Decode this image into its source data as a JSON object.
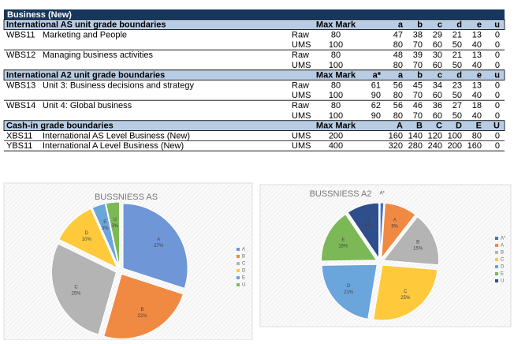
{
  "table": {
    "title": "Business (New)",
    "sections": [
      {
        "heading": "International AS unit grade boundaries",
        "max_header": "Max Mark",
        "grade_headers": [
          "a",
          "b",
          "c",
          "d",
          "e",
          "u"
        ],
        "units": [
          {
            "code": "WBS11",
            "title": "Marketing and People",
            "rows": [
              {
                "scale": "Raw",
                "max": 80,
                "grades": [
                  47,
                  38,
                  29,
                  21,
                  13,
                  0
                ]
              },
              {
                "scale": "UMS",
                "max": 100,
                "grades": [
                  80,
                  70,
                  60,
                  50,
                  40,
                  0
                ]
              }
            ]
          },
          {
            "code": "WBS12",
            "title": "Managing business activities",
            "rows": [
              {
                "scale": "Raw",
                "max": 80,
                "grades": [
                  48,
                  39,
                  30,
                  21,
                  13,
                  0
                ]
              },
              {
                "scale": "UMS",
                "max": 100,
                "grades": [
                  80,
                  70,
                  60,
                  50,
                  40,
                  0
                ]
              }
            ]
          }
        ]
      },
      {
        "heading": "International A2 unit grade boundaries",
        "max_header": "Max Mark",
        "grade_headers": [
          "a*",
          "a",
          "b",
          "c",
          "d",
          "e",
          "u"
        ],
        "units": [
          {
            "code": "WBS13",
            "title": "Unit 3: Business decisions and strategy",
            "rows": [
              {
                "scale": "Raw",
                "max": 80,
                "grades": [
                  61,
                  56,
                  45,
                  34,
                  23,
                  13,
                  0
                ]
              },
              {
                "scale": "UMS",
                "max": 100,
                "grades": [
                  90,
                  80,
                  70,
                  60,
                  50,
                  40,
                  0
                ]
              }
            ]
          },
          {
            "code": "WBS14",
            "title": "Unit 4: Global business",
            "rows": [
              {
                "scale": "Raw",
                "max": 80,
                "grades": [
                  62,
                  56,
                  46,
                  36,
                  27,
                  18,
                  0
                ]
              },
              {
                "scale": "UMS",
                "max": 100,
                "grades": [
                  90,
                  80,
                  70,
                  60,
                  50,
                  40,
                  0
                ]
              }
            ]
          }
        ]
      },
      {
        "heading": "Cash-in grade boundaries",
        "max_header": "Max Mark",
        "grade_headers": [
          "A",
          "B",
          "C",
          "D",
          "E",
          "U"
        ],
        "units": [
          {
            "code": "XBS11",
            "title": "International AS Level Business (New)",
            "rows": [
              {
                "scale": "UMS",
                "max": 200,
                "grades": [
                  160,
                  140,
                  120,
                  100,
                  80,
                  0
                ]
              }
            ]
          },
          {
            "code": "YBS11",
            "title": "International A Level Business (New)",
            "rows": [
              {
                "scale": "UMS",
                "max": 400,
                "grades": [
                  320,
                  280,
                  240,
                  200,
                  160,
                  0
                ]
              }
            ]
          }
        ]
      }
    ]
  },
  "chart_data": [
    {
      "type": "pie",
      "title": "BUSSNIESS AS",
      "categories": [
        "A",
        "B",
        "C",
        "D",
        "E",
        "U"
      ],
      "values": [
        27,
        22,
        25,
        10,
        3,
        3
      ],
      "value_labels": [
        "27%",
        "22%",
        "25%",
        "10%",
        "3%",
        "3%"
      ],
      "colors": [
        "#6f96d6",
        "#f08a43",
        "#b4b4b4",
        "#ffc93c",
        "#6aa5dc",
        "#7db857"
      ],
      "legend": "right"
    },
    {
      "type": "pie",
      "title": "BUSSNIESS A2",
      "categories": [
        "A*",
        "A",
        "B",
        "C",
        "D",
        "E",
        "U"
      ],
      "values": [
        1,
        9,
        15,
        25,
        21,
        15,
        9
      ],
      "value_labels": [
        null,
        "9%",
        "15%",
        "25%",
        "21%",
        "15%",
        "9%"
      ],
      "colors": [
        "#4472c4",
        "#f08a43",
        "#b4b4b4",
        "#ffc93c",
        "#6aa5dc",
        "#7db857",
        "#2f4e8c"
      ],
      "legend": "right"
    }
  ]
}
